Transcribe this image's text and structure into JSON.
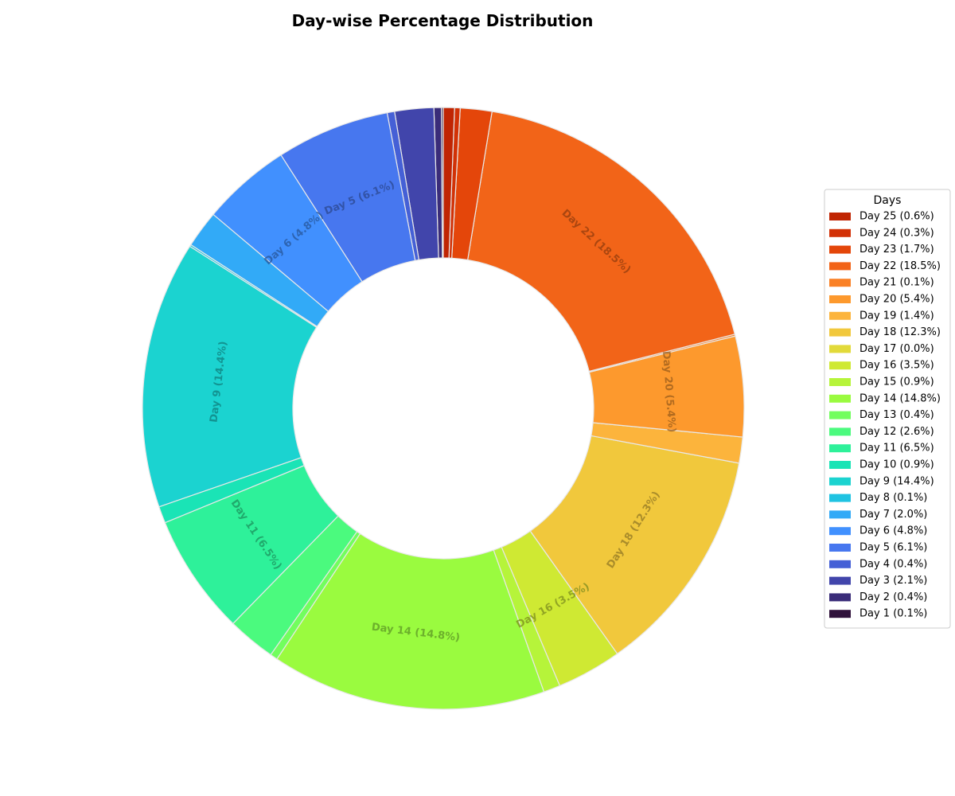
{
  "chart_data": {
    "type": "pie",
    "title": "Day-wise Percentage Distribution",
    "donut": true,
    "start": "top, counter-clockwise",
    "legend": {
      "title": "Days",
      "placement": "right",
      "order": "descending by day"
    },
    "slices": [
      {
        "day": "Day 1",
        "value": 0.1,
        "legend": "Day 1 (0.1%)",
        "label": "",
        "color": "#30123b"
      },
      {
        "day": "Day 2",
        "value": 0.4,
        "legend": "Day 2 (0.4%)",
        "label": "",
        "color": "#3a2c79"
      },
      {
        "day": "Day 3",
        "value": 2.1,
        "legend": "Day 3 (2.1%)",
        "label": "",
        "color": "#4145ab"
      },
      {
        "day": "Day 4",
        "value": 0.4,
        "legend": "Day 4 (0.4%)",
        "label": "",
        "color": "#4560d6"
      },
      {
        "day": "Day 5",
        "value": 6.1,
        "legend": "Day 5 (6.1%)",
        "label": "Day 5 (6.1%)",
        "color": "#4777ef"
      },
      {
        "day": "Day 6",
        "value": 4.8,
        "legend": "Day 6 (4.8%)",
        "label": "Day 6 (4.8%)",
        "color": "#4190fe"
      },
      {
        "day": "Day 7",
        "value": 2.0,
        "legend": "Day 7 (2.0%)",
        "label": "",
        "color": "#32aaf7"
      },
      {
        "day": "Day 8",
        "value": 0.1,
        "legend": "Day 8 (0.1%)",
        "label": "",
        "color": "#1fc3e2"
      },
      {
        "day": "Day 9",
        "value": 14.4,
        "legend": "Day 9 (14.4%)",
        "label": "Day 9 (14.4%)",
        "color": "#1bd3d0"
      },
      {
        "day": "Day 10",
        "value": 0.9,
        "legend": "Day 10 (0.9%)",
        "label": "",
        "color": "#1ae4b6"
      },
      {
        "day": "Day 11",
        "value": 6.5,
        "legend": "Day 11 (6.5%)",
        "label": "Day 11 (6.5%)",
        "color": "#2ef19a"
      },
      {
        "day": "Day 12",
        "value": 2.6,
        "legend": "Day 12 (2.6%)",
        "label": "",
        "color": "#4bfa7e"
      },
      {
        "day": "Day 13",
        "value": 0.4,
        "legend": "Day 13 (0.4%)",
        "label": "",
        "color": "#72fe5e"
      },
      {
        "day": "Day 14",
        "value": 14.8,
        "legend": "Day 14 (14.8%)",
        "label": "Day 14 (14.8%)",
        "color": "#9afb3f"
      },
      {
        "day": "Day 15",
        "value": 0.9,
        "legend": "Day 15 (0.9%)",
        "label": "",
        "color": "#b6f43a"
      },
      {
        "day": "Day 16",
        "value": 3.5,
        "legend": "Day 16 (3.5%)",
        "label": "Day 16 (3.5%)",
        "color": "#cfe933"
      },
      {
        "day": "Day 17",
        "value": 0.0,
        "legend": "Day 17 (0.0%)",
        "label": "",
        "color": "#e2da3a"
      },
      {
        "day": "Day 18",
        "value": 12.3,
        "legend": "Day 18 (12.3%)",
        "label": "Day 18 (12.3%)",
        "color": "#f1c83c"
      },
      {
        "day": "Day 19",
        "value": 1.4,
        "legend": "Day 19 (1.4%)",
        "label": "",
        "color": "#fcb43c"
      },
      {
        "day": "Day 20",
        "value": 5.4,
        "legend": "Day 20 (5.4%)",
        "label": "Day 20 (5.4%)",
        "color": "#fd992d"
      },
      {
        "day": "Day 21",
        "value": 0.1,
        "legend": "Day 21 (0.1%)",
        "label": "",
        "color": "#fa8025"
      },
      {
        "day": "Day 22",
        "value": 18.5,
        "legend": "Day 22 (18.5%)",
        "label": "Day 22 (18.5%)",
        "color": "#f26418"
      },
      {
        "day": "Day 23",
        "value": 1.7,
        "legend": "Day 23 (1.7%)",
        "label": "",
        "color": "#e4460a"
      },
      {
        "day": "Day 24",
        "value": 0.3,
        "legend": "Day 24 (0.3%)",
        "label": "",
        "color": "#d23106"
      },
      {
        "day": "Day 25",
        "value": 0.6,
        "legend": "Day 25 (0.6%)",
        "label": "",
        "color": "#c02503"
      }
    ]
  }
}
